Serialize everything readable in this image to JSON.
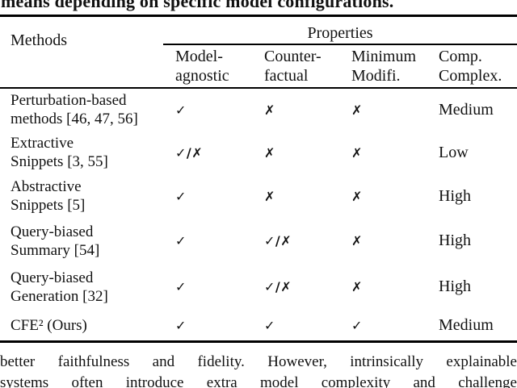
{
  "page": {
    "caption_fragment": "means depending on specific model configurations.",
    "body_text_line1": "better faithfulness and fidelity. However, intrinsically explainable",
    "body_text_line2": "systems often introduce extra model complexity and challenge"
  },
  "table": {
    "methods_header": "Methods",
    "properties_group_header": "Properties",
    "property_columns": [
      {
        "line1": "Model-",
        "line2": "agnostic"
      },
      {
        "line1": "Counter-",
        "line2": "factual"
      },
      {
        "line1": "Minimum",
        "line2": "Modifi."
      },
      {
        "line1": "Comp.",
        "line2": "Complex."
      }
    ],
    "rows": [
      {
        "method_line1": "Perturbation-based",
        "method_line2": "methods [46, 47, 56]",
        "model_agnostic": "✓",
        "counterfactual": "✗",
        "minimum_modification": "✗",
        "computational_complexity": "Medium"
      },
      {
        "method_line1": "Extractive",
        "method_line2": "Snippets [3, 55]",
        "model_agnostic": "✓/✗",
        "counterfactual": "✗",
        "minimum_modification": "✗",
        "computational_complexity": "Low"
      },
      {
        "method_line1": "Abstractive",
        "method_line2": "Snippets [5]",
        "model_agnostic": "✓",
        "counterfactual": "✗",
        "minimum_modification": "✗",
        "computational_complexity": "High"
      },
      {
        "method_line1": "Query-biased",
        "method_line2": "Summary [54]",
        "model_agnostic": "✓",
        "counterfactual": "✓/✗",
        "minimum_modification": "✗",
        "computational_complexity": "High"
      },
      {
        "method_line1": "Query-biased",
        "method_line2": "Generation [32]",
        "model_agnostic": "✓",
        "counterfactual": "✓/✗",
        "minimum_modification": "✗",
        "computational_complexity": "High"
      },
      {
        "method_line1": "CFE² (Ours)",
        "method_line2": "",
        "model_agnostic": "✓",
        "counterfactual": "✓",
        "minimum_modification": "✓",
        "computational_complexity": "Medium"
      }
    ]
  },
  "colors": {
    "text": "#111111",
    "background": "#ffffff",
    "rule": "#000000"
  }
}
